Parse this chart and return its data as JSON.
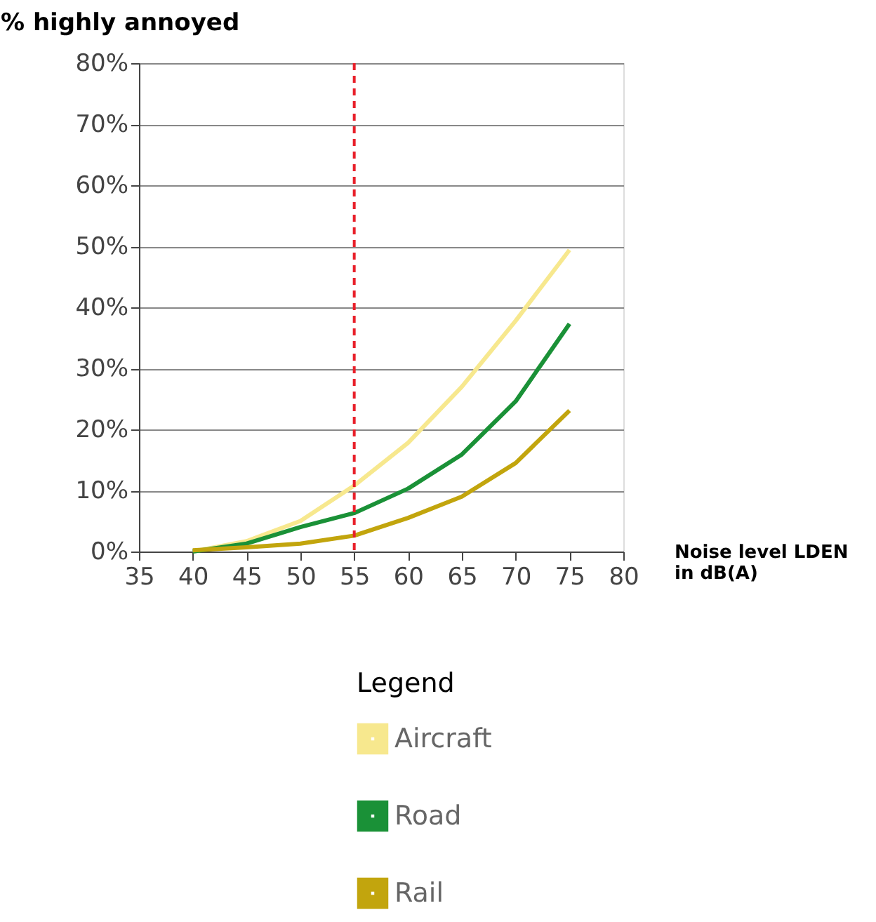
{
  "chart_data": {
    "type": "line",
    "ylabel": "% highly annoyed",
    "xlabel": "Noise level LDEN in dB(A)",
    "legend_title": "Legend",
    "x": [
      40,
      45,
      50,
      55,
      60,
      65,
      70,
      75
    ],
    "series": [
      {
        "name": "Aircraft",
        "color": "#f7e88e",
        "values": [
          0,
          1.7,
          5.0,
          10.8,
          17.8,
          27,
          37.8,
          49.4
        ]
      },
      {
        "name": "Road",
        "color": "#1a9137",
        "values": [
          0,
          1.3,
          4.0,
          6.3,
          10.3,
          15.9,
          24.6,
          37.3
        ]
      },
      {
        "name": "Rail",
        "color": "#c2a50d",
        "values": [
          0.2,
          0.7,
          1.3,
          2.6,
          5.5,
          9.0,
          14.5,
          23.1
        ]
      }
    ],
    "xlim": [
      35,
      80
    ],
    "xticks": [
      35,
      40,
      45,
      50,
      55,
      60,
      65,
      70,
      75,
      80
    ],
    "ylim": [
      0,
      80
    ],
    "yticks": [
      {
        "value": 0,
        "label": "0%"
      },
      {
        "value": 10,
        "label": "10%"
      },
      {
        "value": 20,
        "label": "20%"
      },
      {
        "value": 30,
        "label": "30%"
      },
      {
        "value": 40,
        "label": "40%"
      },
      {
        "value": 50,
        "label": "50%"
      },
      {
        "value": 60,
        "label": "60%"
      },
      {
        "value": 70,
        "label": "70%"
      },
      {
        "value": 80,
        "label": "80%"
      }
    ],
    "ref_lines": [
      {
        "axis": "x",
        "value": 55,
        "color": "#e8202a",
        "line_style": "dashed"
      }
    ],
    "grid": "y",
    "legend": "bottom",
    "marker": "none",
    "line_style": "solid"
  }
}
